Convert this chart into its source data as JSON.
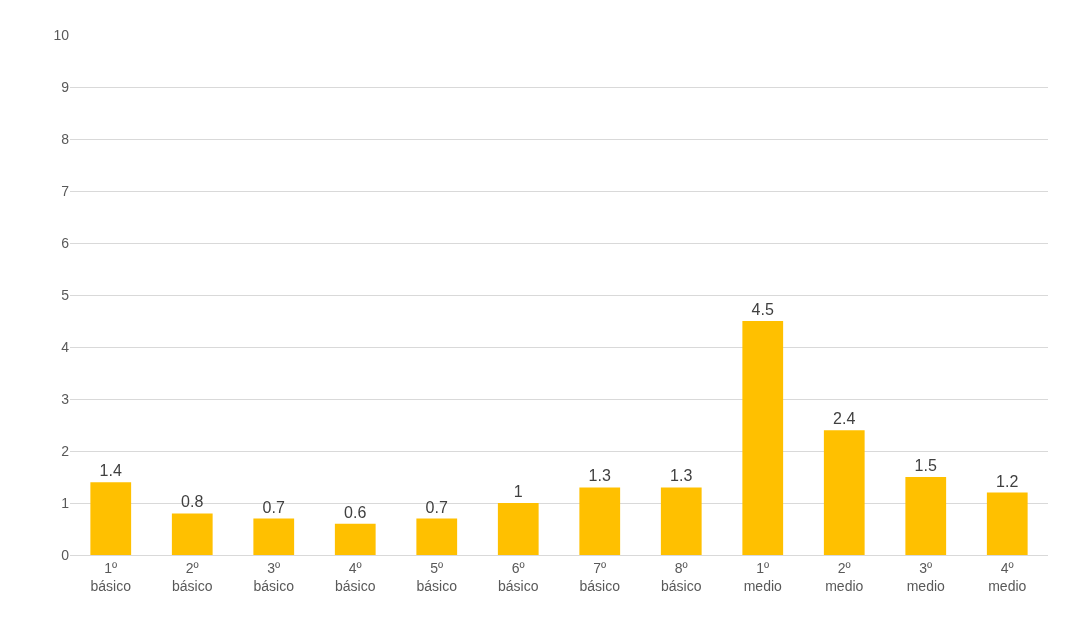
{
  "chart_data": {
    "type": "bar",
    "categories": [
      "1º básico",
      "2º básico",
      "3º básico",
      "4º básico",
      "5º básico",
      "6º básico",
      "7º básico",
      "8º básico",
      "1º medio",
      "2º medio",
      "3º medio",
      "4º medio"
    ],
    "values": [
      1.4,
      0.8,
      0.7,
      0.6,
      0.7,
      1,
      1.3,
      1.3,
      4.5,
      2.4,
      1.5,
      1.2
    ],
    "color": "#ffc000",
    "ylim": [
      0,
      10
    ],
    "yticks": [
      0,
      1,
      2,
      3,
      4,
      5,
      6,
      7,
      8,
      9,
      10
    ],
    "grid": "y",
    "data_labels": true
  }
}
